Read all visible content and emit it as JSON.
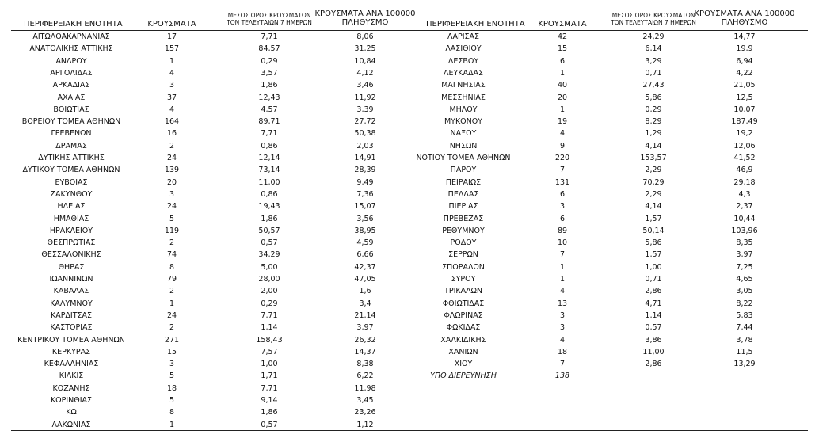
{
  "left": {
    "headers": [
      [
        "ΠΕΡΙΦΕΡΕΙΑΚΗ ΕΝΟΤΗΤΑ"
      ],
      [
        "ΚΡΟΥΣΜΑΤΑ"
      ],
      [
        "ΜΕΣΟΣ ΟΡΟΣ ΚΡΟΥΣΜΑΤΩΝ",
        "ΤΟΝ ΤΕΛΕΥΤΑΙΩΝ 7 ΗΜΕΡΩΝ"
      ],
      [
        "ΚΡΟΥΣΜΑΤΑ ΑΝΑ 100000",
        "ΠΛΗΘΥΣΜΟ"
      ]
    ],
    "rows": [
      [
        "ΑΙΤΩΛΟΑΚΑΡΝΑΝΙΑΣ",
        "17",
        "7,71",
        "8,06"
      ],
      [
        "ΑΝΑΤΟΛΙΚΗΣ ΑΤΤΙΚΗΣ",
        "157",
        "84,57",
        "31,25"
      ],
      [
        "ΑΝΔΡΟΥ",
        "1",
        "0,29",
        "10,84"
      ],
      [
        "ΑΡΓΟΛΙΔΑΣ",
        "4",
        "3,57",
        "4,12"
      ],
      [
        "ΑΡΚΑΔΙΑΣ",
        "3",
        "1,86",
        "3,46"
      ],
      [
        "ΑΧΑΪΑΣ",
        "37",
        "12,43",
        "11,92"
      ],
      [
        "ΒΟΙΩΤΙΑΣ",
        "4",
        "4,57",
        "3,39"
      ],
      [
        "ΒΟΡΕΙΟΥ ΤΟΜΕΑ ΑΘΗΝΩΝ",
        "164",
        "89,71",
        "27,72"
      ],
      [
        "ΓΡΕΒΕΝΩΝ",
        "16",
        "7,71",
        "50,38"
      ],
      [
        "ΔΡΑΜΑΣ",
        "2",
        "0,86",
        "2,03"
      ],
      [
        "ΔΥΤΙΚΗΣ ΑΤΤΙΚΗΣ",
        "24",
        "12,14",
        "14,91"
      ],
      [
        "ΔΥΤΙΚΟΥ ΤΟΜΕΑ ΑΘΗΝΩΝ",
        "139",
        "73,14",
        "28,39"
      ],
      [
        "ΕΥΒΟΙΑΣ",
        "20",
        "11,00",
        "9,49"
      ],
      [
        "ΖΑΚΥΝΘΟΥ",
        "3",
        "0,86",
        "7,36"
      ],
      [
        "ΗΛΕΙΑΣ",
        "24",
        "19,43",
        "15,07"
      ],
      [
        "ΗΜΑΘΙΑΣ",
        "5",
        "1,86",
        "3,56"
      ],
      [
        "ΗΡΑΚΛΕΙΟΥ",
        "119",
        "50,57",
        "38,95"
      ],
      [
        "ΘΕΣΠΡΩΤΙΑΣ",
        "2",
        "0,57",
        "4,59"
      ],
      [
        "ΘΕΣΣΑΛΟΝΙΚΗΣ",
        "74",
        "34,29",
        "6,66"
      ],
      [
        "ΘΗΡΑΣ",
        "8",
        "5,00",
        "42,37"
      ],
      [
        "ΙΩΑΝΝΙΝΩΝ",
        "79",
        "28,00",
        "47,05"
      ],
      [
        "ΚΑΒΑΛΑΣ",
        "2",
        "2,00",
        "1,6"
      ],
      [
        "ΚΑΛΥΜΝΟΥ",
        "1",
        "0,29",
        "3,4"
      ],
      [
        "ΚΑΡΔΙΤΣΑΣ",
        "24",
        "7,71",
        "21,14"
      ],
      [
        "ΚΑΣΤΟΡΙΑΣ",
        "2",
        "1,14",
        "3,97"
      ],
      [
        "ΚΕΝΤΡΙΚΟΥ ΤΟΜΕΑ ΑΘΗΝΩΝ",
        "271",
        "158,43",
        "26,32"
      ],
      [
        "ΚΕΡΚΥΡΑΣ",
        "15",
        "7,57",
        "14,37"
      ],
      [
        "ΚΕΦΑΛΛΗΝΙΑΣ",
        "3",
        "1,00",
        "8,38"
      ],
      [
        "ΚΙΛΚΙΣ",
        "5",
        "1,71",
        "6,22"
      ],
      [
        "ΚΟΖΑΝΗΣ",
        "18",
        "7,71",
        "11,98"
      ],
      [
        "ΚΟΡΙΝΘΙΑΣ",
        "5",
        "9,14",
        "3,45"
      ],
      [
        "ΚΩ",
        "8",
        "1,86",
        "23,26"
      ],
      [
        "ΛΑΚΩΝΙΑΣ",
        "1",
        "0,57",
        "1,12"
      ]
    ]
  },
  "right": {
    "headers": [
      [
        "ΠΕΡΙΦΕΡΕΙΑΚΗ ΕΝΟΤΗΤΑ"
      ],
      [
        "ΚΡΟΥΣΜΑΤΑ"
      ],
      [
        "ΜΕΣΟΣ ΟΡΟΣ ΚΡΟΥΣΜΑΤΩΝ",
        "ΤΟΝ ΤΕΛΕΥΤΑΙΩΝ 7 ΗΜΕΡΩΝ"
      ],
      [
        "ΚΡΟΥΣΜΑΤΑ ΑΝΑ 100000",
        "ΠΛΗΘΥΣΜΟ"
      ]
    ],
    "rows": [
      [
        "ΛΑΡΙΣΑΣ",
        "42",
        "24,29",
        "14,77"
      ],
      [
        "ΛΑΣΙΘΙΟΥ",
        "15",
        "6,14",
        "19,9"
      ],
      [
        "ΛΕΣΒΟΥ",
        "6",
        "3,29",
        "6,94"
      ],
      [
        "ΛΕΥΚΑΔΑΣ",
        "1",
        "0,71",
        "4,22"
      ],
      [
        "ΜΑΓΝΗΣΙΑΣ",
        "40",
        "27,43",
        "21,05"
      ],
      [
        "ΜΕΣΣΗΝΙΑΣ",
        "20",
        "5,86",
        "12,5"
      ],
      [
        "ΜΗΛΟΥ",
        "1",
        "0,29",
        "10,07"
      ],
      [
        "ΜΥΚΟΝΟΥ",
        "19",
        "8,29",
        "187,49"
      ],
      [
        "ΝΑΞΟΥ",
        "4",
        "1,29",
        "19,2"
      ],
      [
        "ΝΗΣΩΝ",
        "9",
        "4,14",
        "12,06"
      ],
      [
        "ΝΟΤΙΟΥ ΤΟΜΕΑ ΑΘΗΝΩΝ",
        "220",
        "153,57",
        "41,52"
      ],
      [
        "ΠΑΡΟΥ",
        "7",
        "2,29",
        "46,9"
      ],
      [
        "ΠΕΙΡΑΙΩΣ",
        "131",
        "70,29",
        "29,18"
      ],
      [
        "ΠΕΛΛΑΣ",
        "6",
        "2,29",
        "4,3"
      ],
      [
        "ΠΙΕΡΙΑΣ",
        "3",
        "4,14",
        "2,37"
      ],
      [
        "ΠΡΕΒΕΖΑΣ",
        "6",
        "1,57",
        "10,44"
      ],
      [
        "ΡΕΘΥΜΝΟΥ",
        "89",
        "50,14",
        "103,96"
      ],
      [
        "ΡΟΔΟΥ",
        "10",
        "5,86",
        "8,35"
      ],
      [
        "ΣΕΡΡΩΝ",
        "7",
        "1,57",
        "3,97"
      ],
      [
        "ΣΠΟΡΑΔΩΝ",
        "1",
        "1,00",
        "7,25"
      ],
      [
        "ΣΥΡΟΥ",
        "1",
        "0,71",
        "4,65"
      ],
      [
        "ΤΡΙΚΑΛΩΝ",
        "4",
        "2,86",
        "3,05"
      ],
      [
        "ΦΘΙΩΤΙΔΑΣ",
        "13",
        "4,71",
        "8,22"
      ],
      [
        "ΦΛΩΡΙΝΑΣ",
        "3",
        "1,14",
        "5,83"
      ],
      [
        "ΦΩΚΙΔΑΣ",
        "3",
        "0,57",
        "7,44"
      ],
      [
        "ΧΑΛΚΙΔΙΚΗΣ",
        "4",
        "3,86",
        "3,78"
      ],
      [
        "ΧΑΝΙΩΝ",
        "18",
        "11,00",
        "11,5"
      ],
      [
        "ΧΙΟΥ",
        "7",
        "2,86",
        "13,29"
      ]
    ],
    "footnote": [
      "ΥΠΟ ΔΙΕΡΕΥΝΗΣΗ",
      "138"
    ]
  }
}
